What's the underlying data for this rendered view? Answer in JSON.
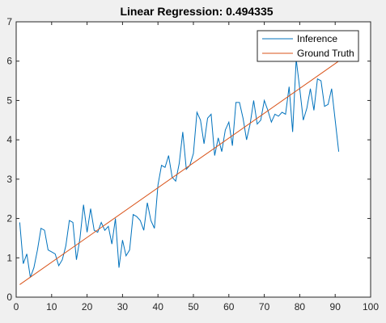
{
  "chart_data": {
    "type": "line",
    "title": "Linear Regression: 0.494335",
    "xlabel": "",
    "ylabel": "",
    "xlim": [
      0,
      100
    ],
    "ylim": [
      0,
      7
    ],
    "xticks": [
      0,
      10,
      20,
      30,
      40,
      50,
      60,
      70,
      80,
      90,
      100
    ],
    "yticks": [
      0,
      1,
      2,
      3,
      4,
      5,
      6,
      7
    ],
    "grid": false,
    "legend_position": "top-right",
    "series": [
      {
        "name": "Inference",
        "color": "#0072bd",
        "x": [
          1,
          2,
          3,
          4,
          5,
          6,
          7,
          8,
          9,
          10,
          11,
          12,
          13,
          14,
          15,
          16,
          17,
          18,
          19,
          20,
          21,
          22,
          23,
          24,
          25,
          26,
          27,
          28,
          29,
          30,
          31,
          32,
          33,
          34,
          35,
          36,
          37,
          38,
          39,
          40,
          41,
          42,
          43,
          44,
          45,
          46,
          47,
          48,
          49,
          50,
          51,
          52,
          53,
          54,
          55,
          56,
          57,
          58,
          59,
          60,
          61,
          62,
          63,
          64,
          65,
          66,
          67,
          68,
          69,
          70,
          71,
          72,
          73,
          74,
          75,
          76,
          77,
          78,
          79,
          80,
          81,
          82,
          83,
          84,
          85,
          86,
          87,
          88,
          89,
          90,
          91
        ],
        "y": [
          1.9,
          0.85,
          1.1,
          0.5,
          0.75,
          1.2,
          1.75,
          1.7,
          1.2,
          1.15,
          1.1,
          0.8,
          0.95,
          1.3,
          1.95,
          1.9,
          0.95,
          1.5,
          2.35,
          1.65,
          2.25,
          1.7,
          1.65,
          1.9,
          1.7,
          1.8,
          1.35,
          2.0,
          0.75,
          1.45,
          1.05,
          1.2,
          2.1,
          2.05,
          1.95,
          1.7,
          2.4,
          1.95,
          1.75,
          2.85,
          3.35,
          3.3,
          3.6,
          3.05,
          2.95,
          3.4,
          4.2,
          3.25,
          3.35,
          3.65,
          4.7,
          4.5,
          3.9,
          4.55,
          4.65,
          3.6,
          4.05,
          3.7,
          4.25,
          4.45,
          3.85,
          4.95,
          4.95,
          4.55,
          4.0,
          4.4,
          5.0,
          4.4,
          4.5,
          5.0,
          4.75,
          4.45,
          4.65,
          4.6,
          4.7,
          4.65,
          5.35,
          4.2,
          6.05,
          5.3,
          4.5,
          4.8,
          5.3,
          4.75,
          5.55,
          5.5,
          4.85,
          4.9,
          5.3,
          4.5,
          3.7
        ]
      },
      {
        "name": "Ground Truth",
        "color": "#d95319",
        "x": [
          1,
          91
        ],
        "y": [
          0.32,
          6.0
        ]
      }
    ]
  }
}
